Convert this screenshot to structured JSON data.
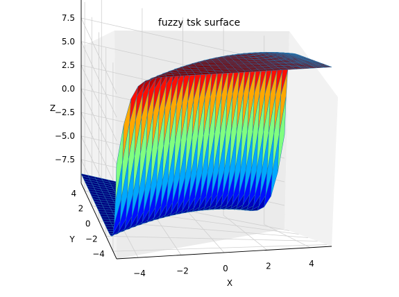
{
  "chart_data": {
    "type": "surface",
    "title": "fuzzy tsk surface",
    "xlabel": "X",
    "ylabel": "Y",
    "zlabel": "Z",
    "xlim": [
      -5,
      5
    ],
    "ylim": [
      -5,
      5
    ],
    "zlim": [
      -10,
      10
    ],
    "xticks": [
      "−4",
      "−2",
      "0",
      "2",
      "4"
    ],
    "yticks": [
      "−4",
      "−2",
      "0",
      "2",
      "4"
    ],
    "zticks": [
      "−7.5",
      "−5.0",
      "−2.5",
      "0.0",
      "2.5",
      "5.0",
      "7.5"
    ],
    "surface_function": "z = 9 * tanh(1.5 * (x - y)), smooth sigmoid step along the x - y diagonal",
    "grid": true,
    "colormap": "jet",
    "edge_color": "#1f77b4"
  }
}
